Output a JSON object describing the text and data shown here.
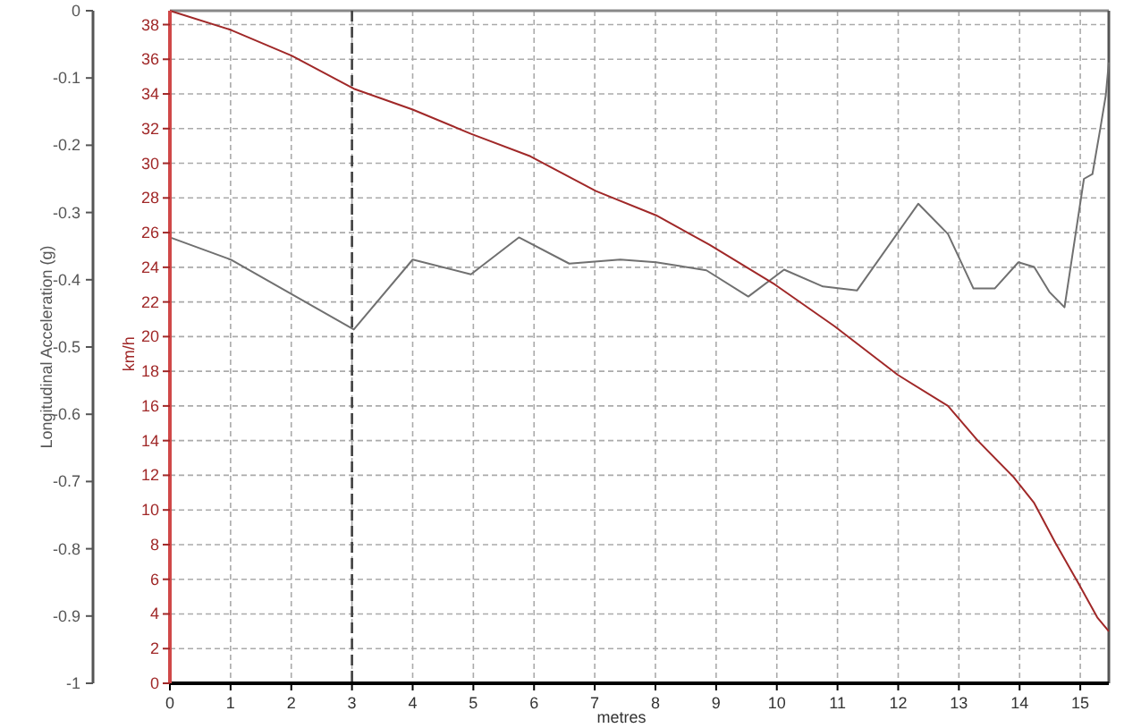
{
  "chart_data": {
    "type": "line",
    "xlabel": "metres",
    "ylabel": "Longitudinal Acceleration (g)",
    "y2label": "km/h",
    "xlim": [
      0,
      15.47
    ],
    "xticks": [
      0,
      1,
      2,
      3,
      4,
      5,
      6,
      7,
      8,
      9,
      10,
      11,
      12,
      13,
      14,
      15
    ],
    "ylim": [
      -1,
      0
    ],
    "yticks": [
      0,
      -0.1,
      -0.2,
      -0.3,
      -0.4,
      -0.5,
      -0.6,
      -0.7,
      -0.8,
      -0.9,
      -1
    ],
    "y2lim": [
      0,
      38.8
    ],
    "y2ticks": [
      0,
      2,
      4,
      6,
      8,
      10,
      12,
      14,
      16,
      18,
      20,
      22,
      24,
      26,
      28,
      30,
      32,
      34,
      36,
      38
    ],
    "grid": true,
    "line_style": "solid",
    "series": [
      {
        "color": "#707070",
        "x": [
          0,
          1.0,
          3.03,
          4.0,
          4.96,
          5.75,
          6.58,
          7.42,
          8.01,
          8.84,
          9.53,
          10.12,
          10.76,
          11.32,
          12.33,
          12.82,
          13.24,
          13.59,
          13.98,
          14.24,
          14.49,
          14.74,
          15.06,
          15.2,
          15.33,
          15.42,
          15.47
        ],
        "values": [
          -0.337,
          -0.37,
          -0.474,
          -0.37,
          -0.392,
          -0.337,
          -0.376,
          -0.37,
          -0.374,
          -0.386,
          -0.425,
          -0.385,
          -0.41,
          -0.416,
          -0.287,
          -0.332,
          -0.413,
          -0.413,
          -0.374,
          -0.381,
          -0.418,
          -0.441,
          -0.25,
          -0.243,
          -0.175,
          -0.126,
          -0.077
        ]
      },
      {
        "color": "#a02828",
        "axis": "y2",
        "x": [
          0,
          1.0,
          2.01,
          3.03,
          4.0,
          4.96,
          5.94,
          7.02,
          8.01,
          8.89,
          9.97,
          10.95,
          11.99,
          12.82,
          13.31,
          13.9,
          14.24,
          14.59,
          14.98,
          15.28,
          15.47
        ],
        "values": [
          38.8,
          37.7,
          36.2,
          34.3,
          33.1,
          31.7,
          30.4,
          28.4,
          27.0,
          25.3,
          23.0,
          20.6,
          17.8,
          16.0,
          14.0,
          11.9,
          10.4,
          8.1,
          5.7,
          3.8,
          3.0
        ]
      }
    ],
    "ref_lines": [
      {
        "axis": "x",
        "value": 3,
        "color": "#404040",
        "line_style": "dashed"
      }
    ]
  }
}
